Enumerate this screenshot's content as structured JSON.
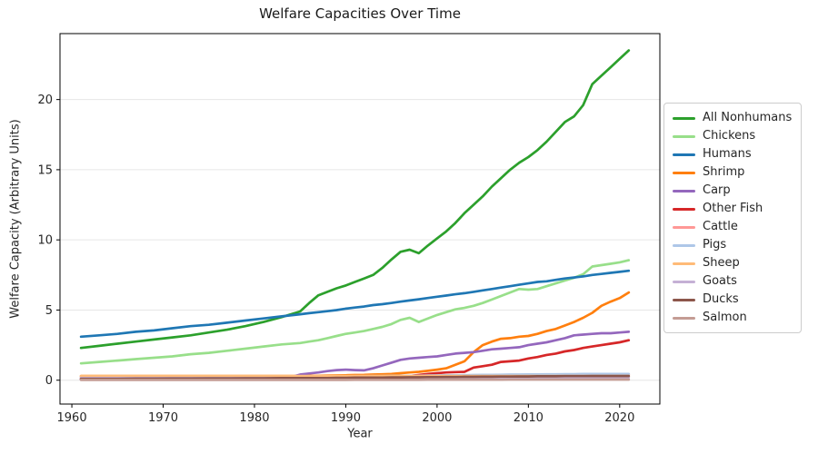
{
  "title": "Welfare Capacities Over Time",
  "xlabel": "Year",
  "ylabel": "Welfare Capacity (Arbitrary Units)",
  "chart_data": {
    "type": "line",
    "title": "Welfare Capacities Over Time",
    "xlabel": "Year",
    "ylabel": "Welfare Capacity (Arbitrary Units)",
    "xlim": [
      1958.7,
      2024.4
    ],
    "ylim": [
      -1.7,
      24.7
    ],
    "xticks": [
      1960,
      1970,
      1980,
      1990,
      2000,
      2010,
      2020
    ],
    "yticks": [
      0,
      5,
      10,
      15,
      20
    ],
    "grid": "horizontal",
    "grid_color": "#e6e6e6",
    "legend_position": "outside-right",
    "x": [
      1961,
      1963,
      1965,
      1967,
      1969,
      1971,
      1973,
      1975,
      1977,
      1979,
      1981,
      1983,
      1985,
      1986,
      1987,
      1988,
      1989,
      1990,
      1991,
      1992,
      1993,
      1994,
      1995,
      1996,
      1997,
      1998,
      1999,
      2000,
      2001,
      2002,
      2003,
      2004,
      2005,
      2006,
      2007,
      2008,
      2009,
      2010,
      2011,
      2012,
      2013,
      2014,
      2015,
      2016,
      2017,
      2018,
      2019,
      2020,
      2021
    ],
    "series": [
      {
        "name": "All Nonhumans",
        "color": "#2ca02c",
        "values": [
          2.3,
          2.45,
          2.6,
          2.75,
          2.9,
          3.05,
          3.2,
          3.4,
          3.6,
          3.85,
          4.15,
          4.5,
          4.9,
          5.5,
          6.05,
          6.3,
          6.55,
          6.75,
          7.0,
          7.25,
          7.5,
          8.0,
          8.6,
          9.15,
          9.3,
          9.05,
          9.6,
          10.1,
          10.6,
          11.2,
          11.9,
          12.5,
          13.1,
          13.8,
          14.4,
          15.0,
          15.5,
          15.9,
          16.4,
          17.0,
          17.7,
          18.4,
          18.8,
          19.6,
          21.1,
          21.7,
          22.3,
          22.9,
          23.5
        ]
      },
      {
        "name": "Chickens",
        "color": "#98df8a",
        "values": [
          1.2,
          1.3,
          1.4,
          1.5,
          1.6,
          1.7,
          1.85,
          1.95,
          2.1,
          2.25,
          2.4,
          2.55,
          2.65,
          2.75,
          2.85,
          3.0,
          3.15,
          3.3,
          3.4,
          3.5,
          3.65,
          3.8,
          4.0,
          4.3,
          4.45,
          4.15,
          4.4,
          4.65,
          4.85,
          5.05,
          5.15,
          5.3,
          5.5,
          5.75,
          6.0,
          6.25,
          6.5,
          6.45,
          6.5,
          6.7,
          6.9,
          7.1,
          7.3,
          7.55,
          8.1,
          8.2,
          8.3,
          8.4,
          8.55
        ]
      },
      {
        "name": "Humans",
        "color": "#1f77b4",
        "values": [
          3.1,
          3.2,
          3.3,
          3.45,
          3.55,
          3.7,
          3.85,
          3.95,
          4.1,
          4.25,
          4.4,
          4.55,
          4.7,
          4.78,
          4.85,
          4.92,
          5.0,
          5.1,
          5.18,
          5.25,
          5.35,
          5.42,
          5.5,
          5.6,
          5.68,
          5.77,
          5.86,
          5.95,
          6.03,
          6.12,
          6.2,
          6.3,
          6.4,
          6.5,
          6.6,
          6.7,
          6.8,
          6.9,
          7.0,
          7.05,
          7.15,
          7.25,
          7.32,
          7.4,
          7.5,
          7.57,
          7.65,
          7.72,
          7.8
        ]
      },
      {
        "name": "Shrimp",
        "color": "#ff7f0e",
        "values": [
          0.3,
          0.3,
          0.3,
          0.3,
          0.3,
          0.3,
          0.3,
          0.3,
          0.3,
          0.3,
          0.3,
          0.3,
          0.3,
          0.31,
          0.32,
          0.33,
          0.34,
          0.35,
          0.37,
          0.38,
          0.4,
          0.42,
          0.45,
          0.5,
          0.55,
          0.6,
          0.67,
          0.75,
          0.85,
          1.1,
          1.35,
          2.0,
          2.5,
          2.75,
          2.95,
          3.0,
          3.1,
          3.15,
          3.3,
          3.5,
          3.65,
          3.9,
          4.15,
          4.45,
          4.8,
          5.3,
          5.6,
          5.85,
          6.25
        ]
      },
      {
        "name": "Carp",
        "color": "#9467bd",
        "values": [
          0.05,
          0.05,
          0.05,
          0.05,
          0.05,
          0.05,
          0.05,
          0.05,
          0.05,
          0.05,
          0.05,
          0.05,
          0.4,
          0.48,
          0.55,
          0.65,
          0.72,
          0.75,
          0.72,
          0.7,
          0.85,
          1.05,
          1.25,
          1.45,
          1.55,
          1.6,
          1.65,
          1.7,
          1.8,
          1.9,
          1.95,
          2.0,
          2.1,
          2.2,
          2.25,
          2.3,
          2.35,
          2.5,
          2.6,
          2.7,
          2.85,
          3.0,
          3.2,
          3.25,
          3.3,
          3.35,
          3.35,
          3.4,
          3.45
        ]
      },
      {
        "name": "Other Fish",
        "color": "#d62728",
        "values": [
          0.1,
          0.1,
          0.1,
          0.1,
          0.1,
          0.1,
          0.1,
          0.1,
          0.1,
          0.1,
          0.1,
          0.1,
          0.1,
          0.1,
          0.1,
          0.1,
          0.1,
          0.12,
          0.13,
          0.15,
          0.17,
          0.18,
          0.2,
          0.25,
          0.3,
          0.37,
          0.45,
          0.5,
          0.55,
          0.58,
          0.6,
          0.9,
          1.0,
          1.1,
          1.3,
          1.35,
          1.4,
          1.55,
          1.65,
          1.8,
          1.9,
          2.05,
          2.15,
          2.3,
          2.4,
          2.5,
          2.6,
          2.7,
          2.85
        ]
      },
      {
        "name": "Cattle",
        "color": "#ff9896",
        "values": [
          0.25,
          0.25,
          0.25,
          0.25,
          0.25,
          0.25,
          0.25,
          0.25,
          0.25,
          0.25,
          0.25,
          0.25,
          0.26,
          0.26,
          0.27,
          0.27,
          0.27,
          0.28,
          0.28,
          0.28,
          0.29,
          0.29,
          0.3,
          0.3,
          0.3,
          0.31,
          0.31,
          0.32,
          0.32,
          0.33,
          0.33,
          0.34,
          0.34,
          0.35,
          0.35,
          0.36,
          0.36,
          0.37,
          0.37,
          0.38,
          0.38,
          0.38,
          0.39,
          0.39,
          0.4,
          0.4,
          0.4,
          0.4,
          0.4
        ]
      },
      {
        "name": "Pigs",
        "color": "#aec7e8",
        "values": [
          0.2,
          0.2,
          0.21,
          0.21,
          0.22,
          0.22,
          0.23,
          0.23,
          0.24,
          0.24,
          0.25,
          0.25,
          0.26,
          0.26,
          0.27,
          0.27,
          0.28,
          0.28,
          0.29,
          0.29,
          0.3,
          0.3,
          0.31,
          0.31,
          0.32,
          0.32,
          0.33,
          0.34,
          0.35,
          0.35,
          0.36,
          0.37,
          0.38,
          0.38,
          0.39,
          0.4,
          0.4,
          0.41,
          0.41,
          0.42,
          0.42,
          0.43,
          0.43,
          0.44,
          0.44,
          0.45,
          0.45,
          0.45,
          0.45
        ]
      },
      {
        "name": "Sheep",
        "color": "#ffbb78",
        "values": [
          0.3,
          0.3,
          0.3,
          0.3,
          0.3,
          0.3,
          0.3,
          0.3,
          0.3,
          0.3,
          0.3,
          0.3,
          0.3,
          0.3,
          0.3,
          0.3,
          0.3,
          0.3,
          0.3,
          0.3,
          0.3,
          0.3,
          0.3,
          0.3,
          0.3,
          0.3,
          0.3,
          0.3,
          0.3,
          0.3,
          0.3,
          0.3,
          0.3,
          0.3,
          0.3,
          0.3,
          0.3,
          0.3,
          0.3,
          0.3,
          0.3,
          0.3,
          0.3,
          0.3,
          0.3,
          0.3,
          0.3,
          0.3,
          0.3
        ]
      },
      {
        "name": "Goats",
        "color": "#c5b0d5",
        "values": [
          0.15,
          0.15,
          0.15,
          0.15,
          0.15,
          0.15,
          0.15,
          0.15,
          0.15,
          0.15,
          0.15,
          0.15,
          0.15,
          0.15,
          0.15,
          0.15,
          0.16,
          0.16,
          0.16,
          0.16,
          0.16,
          0.17,
          0.17,
          0.17,
          0.17,
          0.17,
          0.18,
          0.18,
          0.18,
          0.18,
          0.18,
          0.18,
          0.19,
          0.19,
          0.19,
          0.19,
          0.19,
          0.19,
          0.19,
          0.2,
          0.2,
          0.2,
          0.2,
          0.2,
          0.2,
          0.2,
          0.2,
          0.2,
          0.2
        ]
      },
      {
        "name": "Ducks",
        "color": "#8c564b",
        "values": [
          0.1,
          0.1,
          0.1,
          0.11,
          0.11,
          0.12,
          0.12,
          0.13,
          0.13,
          0.14,
          0.14,
          0.15,
          0.15,
          0.15,
          0.16,
          0.16,
          0.17,
          0.17,
          0.18,
          0.18,
          0.19,
          0.19,
          0.2,
          0.2,
          0.21,
          0.21,
          0.22,
          0.22,
          0.23,
          0.23,
          0.24,
          0.24,
          0.25,
          0.25,
          0.26,
          0.26,
          0.27,
          0.27,
          0.28,
          0.28,
          0.28,
          0.29,
          0.29,
          0.29,
          0.3,
          0.3,
          0.3,
          0.3,
          0.3
        ]
      },
      {
        "name": "Salmon",
        "color": "#c49c94",
        "values": [
          0.02,
          0.02,
          0.02,
          0.02,
          0.02,
          0.02,
          0.02,
          0.02,
          0.02,
          0.02,
          0.02,
          0.02,
          0.02,
          0.02,
          0.02,
          0.02,
          0.02,
          0.02,
          0.03,
          0.03,
          0.03,
          0.03,
          0.03,
          0.03,
          0.03,
          0.03,
          0.04,
          0.04,
          0.04,
          0.04,
          0.04,
          0.04,
          0.04,
          0.04,
          0.04,
          0.05,
          0.05,
          0.05,
          0.05,
          0.05,
          0.05,
          0.05,
          0.05,
          0.05,
          0.05,
          0.05,
          0.05,
          0.05,
          0.05
        ]
      }
    ]
  }
}
